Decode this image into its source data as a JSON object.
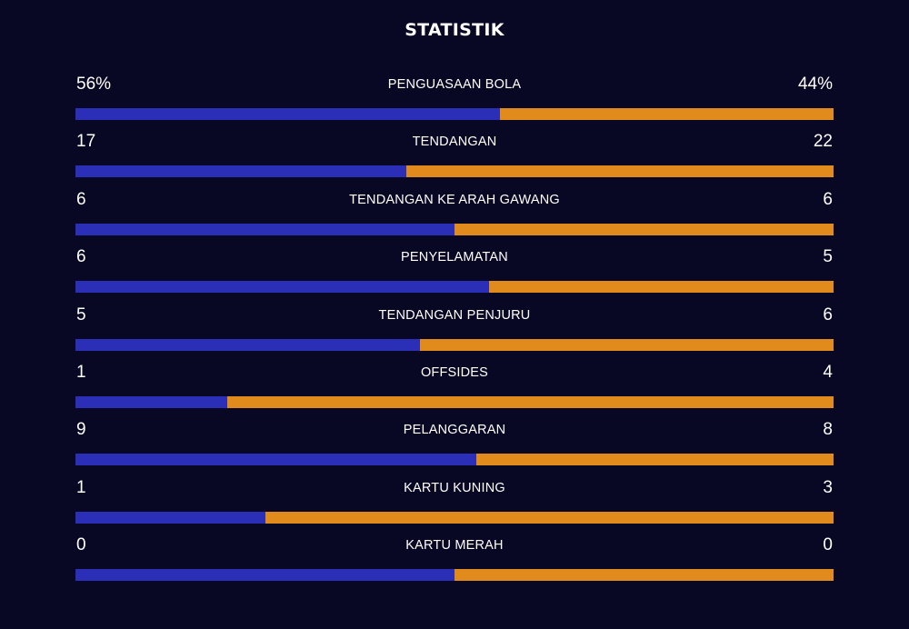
{
  "title": "STATISTIK",
  "colors": {
    "background": "#090824",
    "home": "#2b2fb8",
    "away": "#e08b1c"
  },
  "stats": [
    {
      "label": "PENGUASAAN BOLA",
      "home": "56%",
      "away": "44%",
      "home_share": 0.56
    },
    {
      "label": "TENDANGAN",
      "home": "17",
      "away": "22",
      "home_share": 0.436
    },
    {
      "label": "TENDANGAN KE ARAH GAWANG",
      "home": "6",
      "away": "6",
      "home_share": 0.5
    },
    {
      "label": "PENYELAMATAN",
      "home": "6",
      "away": "5",
      "home_share": 0.545
    },
    {
      "label": "TENDANGAN PENJURU",
      "home": "5",
      "away": "6",
      "home_share": 0.455
    },
    {
      "label": "OFFSIDES",
      "home": "1",
      "away": "4",
      "home_share": 0.2
    },
    {
      "label": "PELANGGARAN",
      "home": "9",
      "away": "8",
      "home_share": 0.529
    },
    {
      "label": "KARTU KUNING",
      "home": "1",
      "away": "3",
      "home_share": 0.25
    },
    {
      "label": "KARTU MERAH",
      "home": "0",
      "away": "0",
      "home_share": 0.5
    }
  ]
}
